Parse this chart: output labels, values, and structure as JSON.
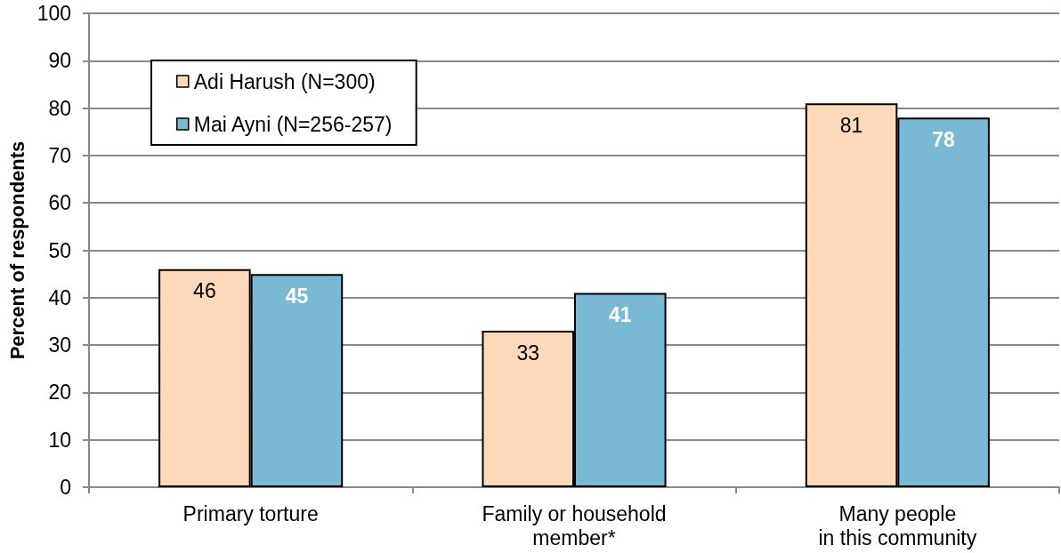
{
  "chart_data": {
    "type": "bar",
    "ylabel": "Percent of respondents",
    "categories": [
      "Primary torture",
      "Family or household\nmember*",
      "Many people\nin this community"
    ],
    "series": [
      {
        "name": "Adi Harush (N=300)",
        "color": "#fdd9b9",
        "values": [
          46,
          33,
          81
        ]
      },
      {
        "name": "Mai Ayni (N=256-257)",
        "color": "#79b9d3",
        "values": [
          45,
          41,
          78
        ]
      }
    ],
    "ylim": [
      0,
      100
    ],
    "yticks": [
      0,
      10,
      20,
      30,
      40,
      50,
      60,
      70,
      80,
      90,
      100
    ],
    "grid": "y",
    "legend": "top left",
    "data_labels": true
  }
}
